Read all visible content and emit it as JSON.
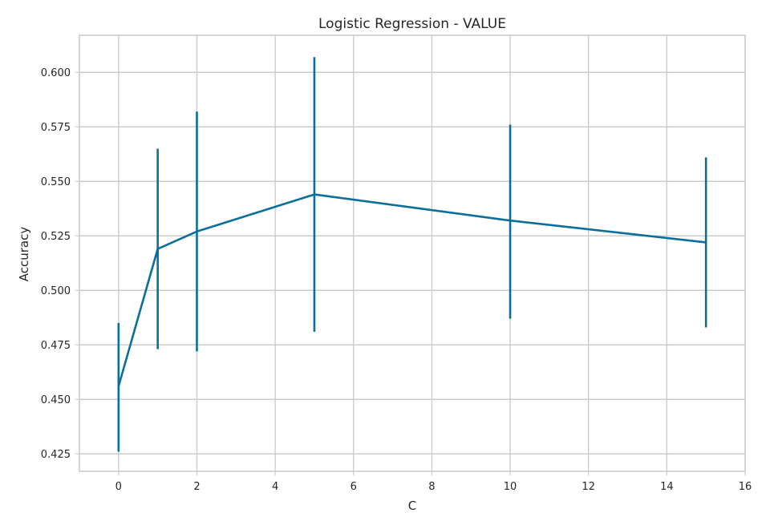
{
  "chart_data": {
    "type": "line",
    "title": "Logistic Regression - VALUE",
    "xlabel": "C",
    "ylabel": "Accuracy",
    "xlim": [
      -1,
      16
    ],
    "ylim": [
      0.417,
      0.617
    ],
    "xticks": [
      0,
      2,
      4,
      6,
      8,
      10,
      12,
      14,
      16
    ],
    "yticks": [
      0.425,
      0.45,
      0.475,
      0.5,
      0.525,
      0.55,
      0.575,
      0.6
    ],
    "ytick_labels": [
      "0.425",
      "0.450",
      "0.475",
      "0.500",
      "0.525",
      "0.550",
      "0.575",
      "0.600"
    ],
    "grid": true,
    "color": "#0b6f9b",
    "series": [
      {
        "x": [
          0,
          1,
          2,
          5,
          10,
          15
        ],
        "y": [
          0.456,
          0.519,
          0.527,
          0.544,
          0.532,
          0.522
        ],
        "error_low": [
          0.426,
          0.473,
          0.472,
          0.481,
          0.487,
          0.483
        ],
        "error_high": [
          0.485,
          0.565,
          0.582,
          0.607,
          0.576,
          0.561
        ]
      }
    ]
  }
}
